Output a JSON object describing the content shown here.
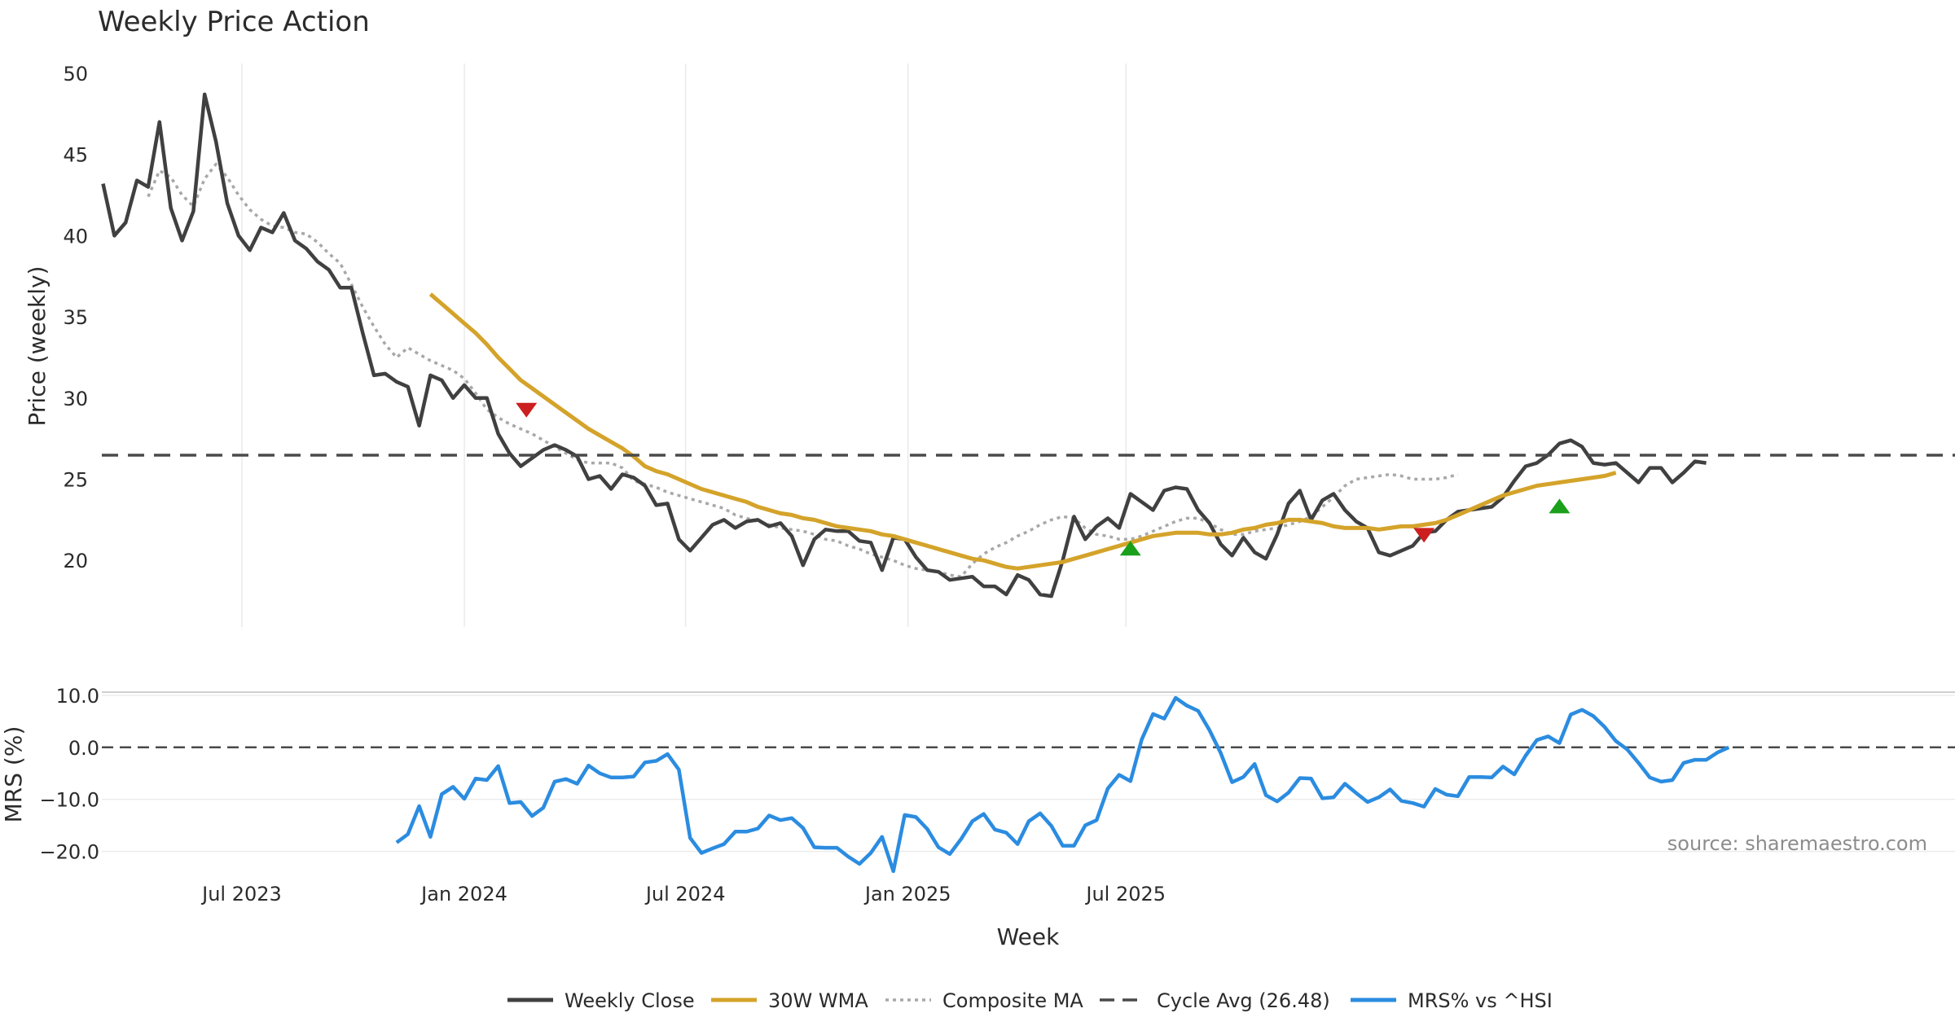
{
  "chart_data": {
    "type": "line",
    "title": "Weekly Price Action",
    "xlabel": "Week",
    "x_ticks": [
      "Jul 2023",
      "Jan 2024",
      "Jul 2024",
      "Jan 2025",
      "Jul 2025"
    ],
    "source": "source: sharemaestro.com",
    "price_panel": {
      "ylabel": "Price (weekly)",
      "ylim": [
        15.9,
        50.6
      ],
      "y_ticks": [
        "20",
        "25",
        "30",
        "35",
        "40",
        "45",
        "50"
      ],
      "series": [
        {
          "name": "Weekly Close",
          "color": "#404040",
          "values": [
            43.2,
            40,
            40.8,
            43.4,
            43.0,
            47,
            41.7,
            39.7,
            41.5,
            48.7,
            45.8,
            42.0,
            40.0,
            39.1,
            40.5,
            40.2,
            41.4,
            39.7,
            39.2,
            38.4,
            37.9,
            36.8,
            36.8,
            34.0,
            31.4,
            31.5,
            31.0,
            30.7,
            28.3,
            31.4,
            31.1,
            30.0,
            30.8,
            30.0,
            30.0,
            27.8,
            26.6,
            25.8,
            26.3,
            26.8,
            27.1,
            26.8,
            26.4,
            25.0,
            25.2,
            24.4,
            25.3,
            25.1,
            24.6,
            23.4,
            23.5,
            21.3,
            20.6,
            21.4,
            22.2,
            22.5,
            22.0,
            22.4,
            22.5,
            22.1,
            22.3,
            21.5,
            19.7,
            21.3,
            21.9,
            21.8,
            21.8,
            21.2,
            21.1,
            19.4,
            21.4,
            21.3,
            20.2,
            19.4,
            19.3,
            18.8,
            18.9,
            19.0,
            18.4,
            18.4,
            17.9,
            19.1,
            18.8,
            17.9,
            17.8,
            20.0,
            22.7,
            21.3,
            22.1,
            22.6,
            22.0,
            24.1,
            23.6,
            23.1,
            24.3,
            24.5,
            24.4,
            23.1,
            22.3,
            21.0,
            20.3,
            21.4,
            20.5,
            20.1,
            21.6,
            23.5,
            24.3,
            22.5,
            23.7,
            24.1,
            23.1,
            22.4,
            22.0,
            20.5,
            20.3,
            20.6,
            20.9,
            21.7,
            21.8,
            22.5,
            23.0,
            23.1,
            23.2,
            23.3,
            23.9,
            24.9,
            25.8,
            26.0,
            26.5,
            27.2,
            27.4,
            27.0,
            26.0,
            25.9,
            26.0,
            25.4,
            24.8,
            25.7,
            25.7,
            24.8,
            25.4,
            26.1,
            26.0
          ]
        },
        {
          "name": "30W WMA",
          "color": "#d4a32a",
          "x_start": 29,
          "values": [
            36.4,
            35.8,
            35.2,
            34.6,
            34.0,
            33.3,
            32.5,
            31.8,
            31.1,
            30.6,
            30.1,
            29.6,
            29.1,
            28.6,
            28.1,
            27.7,
            27.3,
            26.9,
            26.4,
            25.8,
            25.5,
            25.3,
            25.0,
            24.7,
            24.4,
            24.2,
            24.0,
            23.8,
            23.6,
            23.3,
            23.1,
            22.9,
            22.8,
            22.6,
            22.5,
            22.3,
            22.1,
            22.0,
            21.9,
            21.8,
            21.6,
            21.5,
            21.3,
            21.1,
            20.9,
            20.7,
            20.5,
            20.3,
            20.1,
            20.0,
            19.8,
            19.6,
            19.5,
            19.6,
            19.7,
            19.8,
            19.9,
            20.1,
            20.3,
            20.5,
            20.7,
            20.9,
            21.1,
            21.3,
            21.5,
            21.6,
            21.7,
            21.7,
            21.7,
            21.6,
            21.6,
            21.7,
            21.9,
            22.0,
            22.2,
            22.3,
            22.5,
            22.5,
            22.4,
            22.3,
            22.1,
            22.0,
            22.0,
            22.0,
            21.9,
            22.0,
            22.1,
            22.1,
            22.2,
            22.3,
            22.5,
            22.8,
            23.1,
            23.4,
            23.7,
            24.0,
            24.2,
            24.4,
            24.6,
            24.7,
            24.8,
            24.9,
            25.0,
            25.1,
            25.2,
            25.4
          ]
        },
        {
          "name": "Composite MA",
          "color": "#a8a8a8",
          "x_start": 4,
          "values": [
            42.4,
            44.0,
            43.6,
            42.5,
            41.8,
            43.5,
            44.4,
            43.6,
            42.5,
            41.6,
            41.0,
            40.6,
            40.5,
            40.2,
            40.1,
            39.6,
            38.9,
            38.3,
            37.0,
            35.6,
            34.4,
            33.3,
            32.5,
            33.1,
            32.7,
            32.3,
            32.0,
            31.7,
            31.2,
            30.3,
            29.3,
            28.8,
            28.4,
            28.1,
            27.8,
            27.4,
            27.0,
            26.6,
            26.2,
            26.0,
            26.0,
            26.0,
            25.7,
            24.9,
            24.7,
            24.5,
            24.2,
            24.0,
            23.8,
            23.6,
            23.4,
            23.2,
            22.8,
            22.6,
            22.4,
            22.2,
            22.0,
            21.9,
            21.8,
            21.6,
            21.3,
            21.2,
            20.9,
            20.7,
            20.4,
            20.2,
            20.0,
            19.7,
            19.5,
            19.4,
            19.3,
            19.1,
            19.0,
            19.8,
            20.4,
            20.8,
            21.1,
            21.5,
            21.8,
            22.2,
            22.5,
            22.7,
            22.6,
            22.0,
            21.6,
            21.5,
            21.3,
            21.3,
            21.5,
            21.8,
            22.1,
            22.4,
            22.6,
            22.6,
            22.3,
            21.9,
            21.6,
            21.6,
            21.8,
            21.9,
            22.0,
            22.2,
            22.4,
            22.7,
            23.3,
            23.9,
            24.6,
            25.0,
            25.1,
            25.2,
            25.3,
            25.2,
            25.0,
            25.0,
            25.0,
            25.1,
            25.3
          ]
        },
        {
          "name": "Cycle Avg (26.48)",
          "color": "#4a4a4a",
          "value": 26.48
        }
      ],
      "signals": [
        {
          "type": "sell",
          "x": 37.5,
          "y": 29.3,
          "color": "#cc1f1f"
        },
        {
          "type": "buy",
          "x": 91,
          "y": 20.7,
          "color": "#1aa01a"
        },
        {
          "type": "sell",
          "x": 117,
          "y": 21.6,
          "color": "#cc1f1f"
        },
        {
          "type": "buy",
          "x": 129,
          "y": 23.3,
          "color": "#1aa01a"
        }
      ]
    },
    "mrs_panel": {
      "ylabel": "MRS (%)",
      "ylim": [
        -24.6,
        10.6
      ],
      "y_ticks": [
        "10.0",
        "0.0",
        "−10.0",
        "−20.0"
      ],
      "zero_line": 0,
      "series": [
        {
          "name": "MRS% vs ^HSI",
          "color": "#2b8ce0",
          "x_start": 26,
          "values": [
            -18.3,
            -16.7,
            -11.3,
            -17.2,
            -9.0,
            -7.6,
            -9.9,
            -6.0,
            -6.3,
            -3.6,
            -10.7,
            -10.5,
            -13.2,
            -11.6,
            -6.6,
            -6.1,
            -7.0,
            -3.5,
            -5.0,
            -5.8,
            -5.8,
            -5.6,
            -2.9,
            -2.6,
            -1.3,
            -4.3,
            -17.4,
            -20.3,
            -19.4,
            -18.6,
            -16.2,
            -16.2,
            -15.6,
            -13.1,
            -14.0,
            -13.6,
            -15.5,
            -19.2,
            -19.3,
            -19.3,
            -21.0,
            -22.4,
            -20.3,
            -17.2,
            -23.8,
            -13.0,
            -13.4,
            -15.7,
            -19.2,
            -20.5,
            -17.6,
            -14.2,
            -12.8,
            -15.8,
            -16.4,
            -18.6,
            -14.2,
            -12.7,
            -15.1,
            -18.9,
            -18.9,
            -15.0,
            -14.0,
            -7.9,
            -5.3,
            -6.5,
            1.5,
            6.4,
            5.5,
            9.5,
            8.0,
            7.0,
            3.3,
            -1.1,
            -6.7,
            -5.7,
            -3.2,
            -9.2,
            -10.4,
            -8.7,
            -5.9,
            -6.0,
            -9.8,
            -9.6,
            -7.0,
            -8.8,
            -10.5,
            -9.6,
            -8.1,
            -10.3,
            -10.7,
            -11.4,
            -8.0,
            -9.1,
            -9.4,
            -5.7,
            -5.7,
            -5.8,
            -3.7,
            -5.2,
            -1.6,
            1.4,
            2.1,
            0.8,
            6.3,
            7.2,
            6.0,
            3.9,
            1.2,
            -0.4,
            -3.0,
            -5.8,
            -6.6,
            -6.3,
            -3.0,
            -2.4,
            -2.4,
            -1.0,
            0.0
          ]
        }
      ]
    },
    "legend": [
      {
        "label": "Weekly Close",
        "color": "#404040",
        "style": "solid"
      },
      {
        "label": "30W WMA",
        "color": "#d4a32a",
        "style": "solid"
      },
      {
        "label": "Composite MA",
        "color": "#a8a8a8",
        "style": "dotted"
      },
      {
        "label": "Cycle Avg (26.48)",
        "color": "#4a4a4a",
        "style": "dashed"
      },
      {
        "label": "MRS% vs ^HSI",
        "color": "#2b8ce0",
        "style": "solid"
      }
    ]
  }
}
